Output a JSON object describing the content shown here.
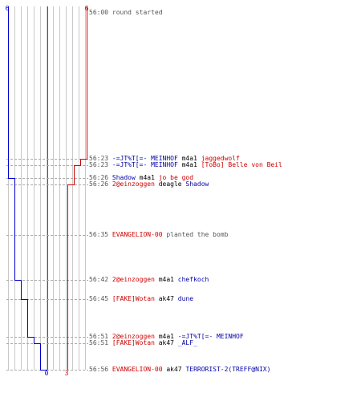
{
  "colors": {
    "counter_terrorist": "#0000cc",
    "terrorist": "#cc0000",
    "grid": "#c8c8c8",
    "center_line": "#555555",
    "time": "#555555"
  },
  "chart_data": {
    "type": "line",
    "x": [
      "56:00",
      "56:23",
      "56:23",
      "56:26",
      "56:26",
      "56:35",
      "56:42",
      "56:45",
      "56:51",
      "56:51",
      "56:56"
    ],
    "series": [
      {
        "values": [
          6,
          6,
          6,
          5,
          5,
          5,
          4,
          3,
          2,
          1,
          0
        ]
      },
      {
        "values": [
          6,
          5,
          4,
          4,
          3,
          3,
          3,
          3,
          3,
          3,
          3
        ]
      }
    ],
    "ylim": [
      0,
      6
    ],
    "grid": true,
    "start_labels": {
      "left": "6",
      "right": "6"
    },
    "end_labels": {
      "left": "0",
      "right": "3"
    }
  },
  "log": [
    {
      "time": "56:00",
      "parts": [
        {
          "text": "round started",
          "cls": "sys"
        }
      ]
    },
    {
      "time": "56:23",
      "parts": [
        {
          "text": "-=JT%T[=- MEINHOF",
          "cls": "cop"
        },
        {
          "text": " m4a1 ",
          "cls": "neu"
        },
        {
          "text": "jaggedwolf",
          "cls": "ter"
        }
      ]
    },
    {
      "time": "56:23",
      "parts": [
        {
          "text": "-=JT%T[=- MEINHOF",
          "cls": "cop"
        },
        {
          "text": " m4a1 ",
          "cls": "neu"
        },
        {
          "text": "[ToBo] Belle von Beil",
          "cls": "ter"
        }
      ]
    },
    {
      "time": "56:26",
      "parts": [
        {
          "text": "Shadow",
          "cls": "cop"
        },
        {
          "text": " m4a1 ",
          "cls": "neu"
        },
        {
          "text": "jo be god",
          "cls": "ter"
        }
      ]
    },
    {
      "time": "56:26",
      "parts": [
        {
          "text": "2@einzoggen",
          "cls": "ter"
        },
        {
          "text": " deagle ",
          "cls": "neu"
        },
        {
          "text": "Shadow",
          "cls": "cop"
        }
      ]
    },
    {
      "time": "56:35",
      "parts": [
        {
          "text": "EVANGELION-00",
          "cls": "ter"
        },
        {
          "text": " planted the bomb",
          "cls": "sys"
        }
      ]
    },
    {
      "time": "56:42",
      "parts": [
        {
          "text": "2@einzoggen",
          "cls": "ter"
        },
        {
          "text": " m4a1 ",
          "cls": "neu"
        },
        {
          "text": "chefkoch",
          "cls": "cop"
        }
      ]
    },
    {
      "time": "56:45",
      "parts": [
        {
          "text": "[FAKE]Wotan",
          "cls": "ter"
        },
        {
          "text": " ak47 ",
          "cls": "neu"
        },
        {
          "text": "dune",
          "cls": "cop"
        }
      ]
    },
    {
      "time": "56:51",
      "parts": [
        {
          "text": "2@einzoggen",
          "cls": "ter"
        },
        {
          "text": " m4a1 ",
          "cls": "neu"
        },
        {
          "text": "-=JT%T[=- MEINHOF",
          "cls": "cop"
        }
      ]
    },
    {
      "time": "56:51",
      "parts": [
        {
          "text": "[FAKE]Wotan",
          "cls": "ter"
        },
        {
          "text": " ak47 ",
          "cls": "neu"
        },
        {
          "text": "_ALF_",
          "cls": "cop"
        }
      ]
    },
    {
      "time": "56:56",
      "parts": [
        {
          "text": "EVANGELION-00",
          "cls": "ter"
        },
        {
          "text": " ak47 ",
          "cls": "neu"
        },
        {
          "text": "TERRORIST-2(TREFF@NIX)",
          "cls": "cop"
        }
      ]
    }
  ]
}
